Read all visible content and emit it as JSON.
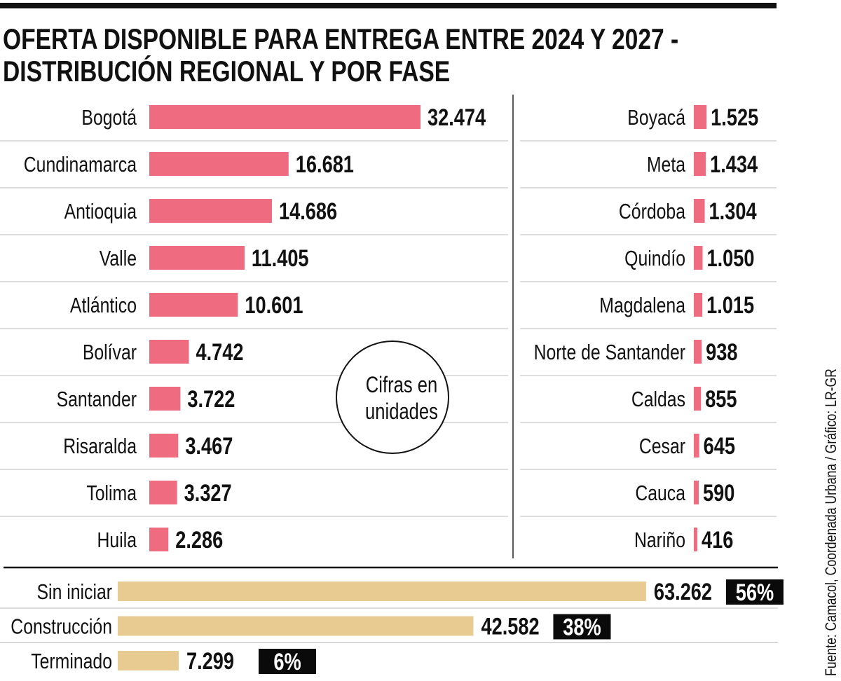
{
  "chart_data": [
    {
      "type": "bar",
      "orientation": "horizontal",
      "title": "OFERTA DISPONIBLE PARA ENTREGA ENTRE 2024 Y 2027 - DISTRIBUCIÓN REGIONAL Y POR FASE",
      "title_lines": [
        "OFERTA DISPONIBLE PARA ENTREGA ENTRE 2024 Y 2027 -",
        "DISTRIBUCIÓN REGIONAL Y POR FASE"
      ],
      "note": [
        "Cifras en",
        "unidades"
      ],
      "color": "#ee6b80",
      "categories": [
        "Bogotá",
        "Cundinamarca",
        "Antioquia",
        "Valle",
        "Atlántico",
        "Bolívar",
        "Santander",
        "Risaralda",
        "Tolima",
        "Huila",
        "Boyacá",
        "Meta",
        "Córdoba",
        "Quindío",
        "Magdalena",
        "Norte de Santander",
        "Caldas",
        "Cesar",
        "Cauca",
        "Nariño"
      ],
      "values": [
        32474,
        16681,
        14686,
        11405,
        10601,
        4742,
        3722,
        3467,
        3327,
        2286,
        1525,
        1434,
        1304,
        1050,
        1015,
        938,
        855,
        645,
        590,
        416
      ],
      "value_labels": [
        "32.474",
        "16.681",
        "14.686",
        "11.405",
        "10.601",
        "4.742",
        "3.722",
        "3.467",
        "3.327",
        "2.286",
        "1.525",
        "1.434",
        "1.304",
        "1.050",
        "1.015",
        "938",
        "855",
        "645",
        "590",
        "416"
      ]
    },
    {
      "type": "bar",
      "orientation": "horizontal",
      "color": "#e8cb90",
      "categories": [
        "Sin iniciar",
        "Construcción",
        "Terminado"
      ],
      "values": [
        63262,
        42582,
        7299
      ],
      "value_labels": [
        "63.262",
        "42.582",
        "7.299"
      ],
      "percent_labels": [
        "56%",
        "38%",
        "6%"
      ]
    }
  ],
  "source": "Fuente: Camacol, Coordenada Urbana / Gráfico: LR-GR"
}
